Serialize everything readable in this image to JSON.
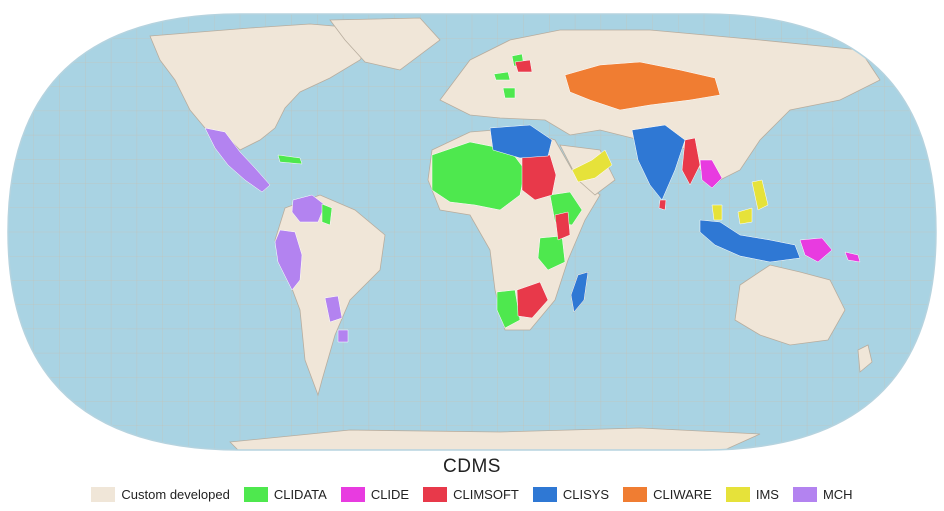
{
  "title": "CDMS",
  "legend": [
    {
      "label": "Custom developed",
      "color": "#f0e6d8"
    },
    {
      "label": "CLIDATA",
      "color": "#4ee84e"
    },
    {
      "label": "CLIDE",
      "color": "#e83be0"
    },
    {
      "label": "CLIMSOFT",
      "color": "#e8394a"
    },
    {
      "label": "CLISYS",
      "color": "#2f78d4"
    },
    {
      "label": "CLIWARE",
      "color": "#f07d32"
    },
    {
      "label": "IMS",
      "color": "#e6e23a"
    },
    {
      "label": "MCH",
      "color": "#b383f0"
    }
  ],
  "colors": {
    "ocean": "#a9d3e3",
    "land": "#f0e6d8",
    "border": "#b8ad9e",
    "graticule": "#c9bfb0"
  }
}
